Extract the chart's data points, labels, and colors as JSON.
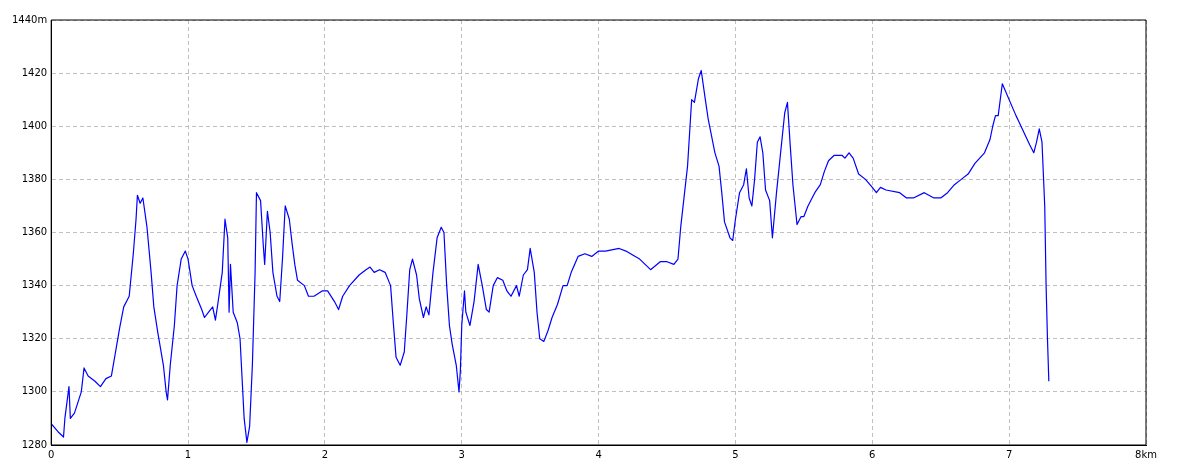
{
  "chart_data": {
    "type": "line",
    "grid": true,
    "legend": false,
    "marker": "none",
    "line_style": "solid",
    "xlim": [
      0,
      8
    ],
    "ylim": [
      1280,
      1440
    ],
    "xticks": [
      0,
      1,
      2,
      3,
      4,
      5,
      6,
      7,
      {
        "value": 8,
        "label": "8km"
      }
    ],
    "yticks": [
      1280,
      1300,
      1320,
      1340,
      1360,
      1380,
      1400,
      1420,
      {
        "value": 1440,
        "label": "1440m"
      }
    ],
    "series": [
      {
        "color": "#0000ff",
        "x": [
          0,
          0.05,
          0.09,
          0.1,
          0.13,
          0.14,
          0.17,
          0.22,
          0.24,
          0.27,
          0.32,
          0.36,
          0.4,
          0.44,
          0.47,
          0.5,
          0.53,
          0.57,
          0.6,
          0.62,
          0.63,
          0.65,
          0.67,
          0.7,
          0.73,
          0.75,
          0.78,
          0.82,
          0.84,
          0.85,
          0.87,
          0.9,
          0.92,
          0.95,
          0.98,
          1.0,
          1.03,
          1.06,
          1.1,
          1.12,
          1.15,
          1.18,
          1.2,
          1.22,
          1.25,
          1.27,
          1.29,
          1.3,
          1.31,
          1.33,
          1.36,
          1.38,
          1.41,
          1.43,
          1.45,
          1.47,
          1.49,
          1.5,
          1.53,
          1.55,
          1.56,
          1.58,
          1.6,
          1.62,
          1.65,
          1.67,
          1.69,
          1.71,
          1.74,
          1.76,
          1.78,
          1.8,
          1.85,
          1.88,
          1.92,
          1.98,
          2.02,
          2.07,
          2.1,
          2.13,
          2.18,
          2.25,
          2.3,
          2.33,
          2.36,
          2.4,
          2.44,
          2.48,
          2.5,
          2.52,
          2.55,
          2.58,
          2.6,
          2.62,
          2.64,
          2.67,
          2.69,
          2.72,
          2.74,
          2.76,
          2.79,
          2.82,
          2.85,
          2.87,
          2.89,
          2.91,
          2.93,
          2.96,
          2.98,
          2.99,
          3.0,
          3.02,
          3.03,
          3.06,
          3.09,
          3.12,
          3.15,
          3.18,
          3.2,
          3.23,
          3.26,
          3.3,
          3.33,
          3.36,
          3.4,
          3.42,
          3.45,
          3.48,
          3.5,
          3.53,
          3.55,
          3.57,
          3.6,
          3.63,
          3.66,
          3.7,
          3.74,
          3.77,
          3.8,
          3.85,
          3.9,
          3.95,
          4.0,
          4.05,
          4.15,
          4.2,
          4.3,
          4.38,
          4.45,
          4.5,
          4.55,
          4.58,
          4.6,
          4.65,
          4.68,
          4.7,
          4.73,
          4.75,
          4.78,
          4.8,
          4.85,
          4.88,
          4.9,
          4.92,
          4.96,
          4.98,
          5.0,
          5.03,
          5.06,
          5.08,
          5.1,
          5.12,
          5.14,
          5.16,
          5.18,
          5.2,
          5.22,
          5.25,
          5.27,
          5.3,
          5.32,
          5.36,
          5.38,
          5.4,
          5.42,
          5.45,
          5.48,
          5.5,
          5.53,
          5.58,
          5.62,
          5.65,
          5.68,
          5.72,
          5.78,
          5.8,
          5.83,
          5.86,
          5.9,
          5.95,
          6.0,
          6.03,
          6.06,
          6.1,
          6.2,
          6.25,
          6.3,
          6.38,
          6.45,
          6.5,
          6.55,
          6.6,
          6.65,
          6.7,
          6.75,
          6.82,
          6.86,
          6.88,
          6.9,
          6.92,
          6.95,
          7.05,
          7.15,
          7.18,
          7.2,
          7.22,
          7.24,
          7.26,
          7.27,
          7.28,
          7.29
        ],
        "values": [
          1288,
          1285,
          1283,
          1290,
          1302,
          1290,
          1292,
          1300,
          1309,
          1306,
          1304,
          1302,
          1305,
          1306,
          1315,
          1324,
          1332,
          1336,
          1352,
          1365,
          1374,
          1371,
          1373,
          1362,
          1345,
          1332,
          1322,
          1310,
          1300,
          1297,
          1310,
          1325,
          1340,
          1350,
          1353,
          1350,
          1340,
          1336,
          1331,
          1328,
          1330,
          1332,
          1327,
          1334,
          1345,
          1365,
          1358,
          1330,
          1348,
          1330,
          1326,
          1320,
          1290,
          1281,
          1287,
          1310,
          1345,
          1375,
          1372,
          1355,
          1348,
          1368,
          1360,
          1345,
          1336,
          1334,
          1350,
          1370,
          1365,
          1356,
          1348,
          1342,
          1340,
          1336,
          1336,
          1338,
          1338,
          1334,
          1331,
          1336,
          1340,
          1344,
          1346,
          1347,
          1345,
          1346,
          1345,
          1340,
          1326,
          1313,
          1310,
          1315,
          1330,
          1346,
          1350,
          1344,
          1335,
          1328,
          1332,
          1329,
          1345,
          1358,
          1362,
          1360,
          1340,
          1325,
          1318,
          1310,
          1300,
          1308,
          1325,
          1338,
          1330,
          1325,
          1334,
          1348,
          1340,
          1331,
          1330,
          1340,
          1343,
          1342,
          1338,
          1336,
          1340,
          1336,
          1344,
          1346,
          1354,
          1345,
          1330,
          1320,
          1319,
          1323,
          1328,
          1333,
          1340,
          1340,
          1345,
          1351,
          1352,
          1351,
          1353,
          1353,
          1354,
          1353,
          1350,
          1346,
          1349,
          1349,
          1348,
          1350,
          1362,
          1385,
          1410,
          1409,
          1418,
          1421,
          1410,
          1403,
          1390,
          1385,
          1375,
          1364,
          1358,
          1357,
          1365,
          1375,
          1378,
          1384,
          1373,
          1370,
          1380,
          1394,
          1396,
          1390,
          1376,
          1372,
          1358,
          1375,
          1385,
          1405,
          1409,
          1393,
          1378,
          1363,
          1366,
          1366,
          1370,
          1375,
          1378,
          1383,
          1387,
          1389,
          1389,
          1388,
          1390,
          1388,
          1382,
          1380,
          1377,
          1375,
          1377,
          1376,
          1375,
          1373,
          1373,
          1375,
          1373,
          1373,
          1375,
          1378,
          1380,
          1382,
          1386,
          1390,
          1395,
          1400,
          1404,
          1404,
          1416,
          1404,
          1393,
          1390,
          1394,
          1399,
          1394,
          1370,
          1340,
          1320,
          1304
        ]
      }
    ]
  }
}
